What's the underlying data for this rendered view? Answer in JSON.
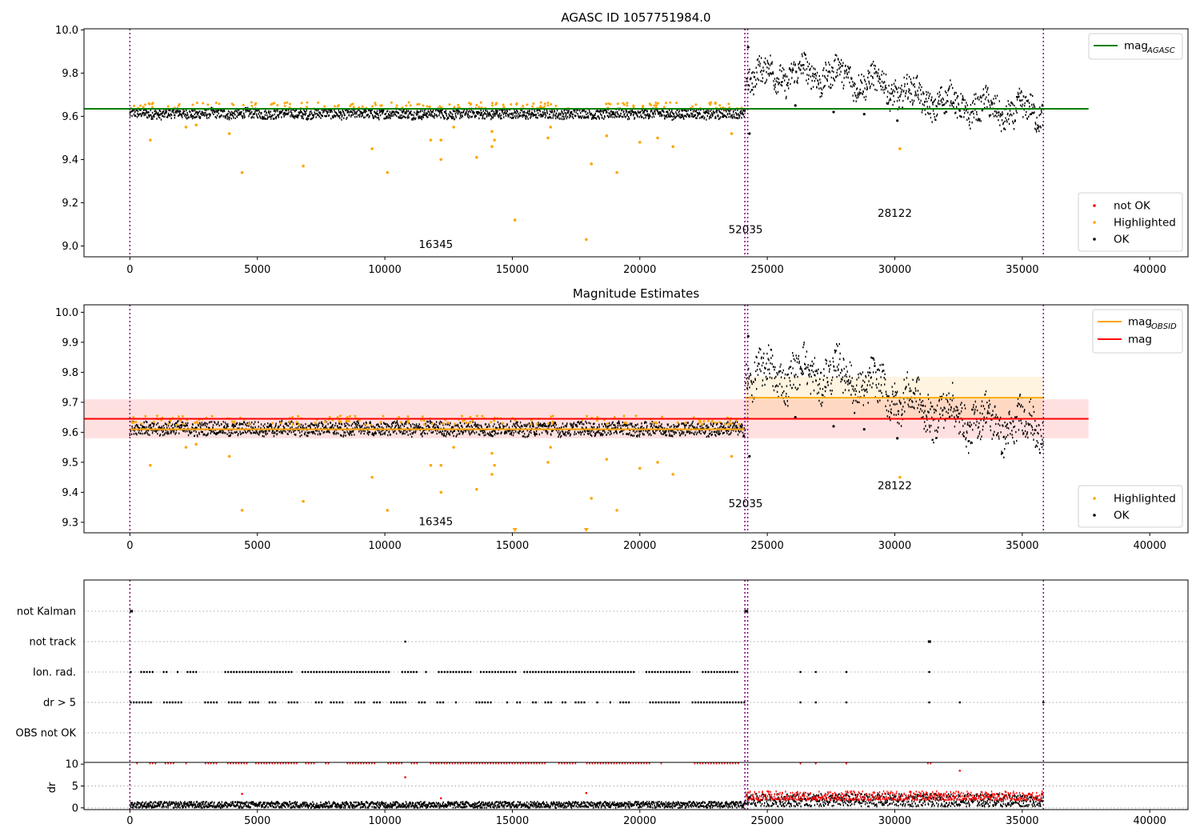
{
  "chart_data": [
    {
      "type": "scatter",
      "title": "AGASC ID 1057751984.0",
      "xlim": [
        -1800,
        41500
      ],
      "ylim": [
        8.95,
        10.005
      ],
      "x_ticks": [
        0,
        5000,
        10000,
        15000,
        20000,
        25000,
        30000,
        35000,
        40000
      ],
      "y_ticks": [
        9.0,
        9.2,
        9.4,
        9.6,
        9.8,
        10.0
      ],
      "y_tick_labels": [
        "9.0",
        "9.2",
        "9.4",
        "9.6",
        "9.8",
        "10.0"
      ],
      "legend_top": {
        "entries": [
          {
            "label": "mag",
            "sub": "AGASC",
            "color": "#008000"
          }
        ]
      },
      "legend_bottom": {
        "entries": [
          {
            "label": "not OK",
            "color": "#ff0000"
          },
          {
            "label": "Highlighted",
            "color": "#ffa500"
          },
          {
            "label": "OK",
            "color": "#000000"
          }
        ]
      },
      "lines": [
        {
          "name": "mag_AGASC",
          "y": 9.635,
          "x0": -1800,
          "x1": 37600,
          "color": "#008000"
        }
      ],
      "vlines": [
        0,
        24120,
        24230,
        35830
      ],
      "bands": [
        {
          "x0": 0,
          "x1": 24150,
          "center": 9.612,
          "spread": 0.022,
          "slope": -0.0009,
          "amp": 0.004
        },
        {
          "x0": 24150,
          "x1": 35830,
          "center_points": [
            [
              24150,
              9.79
            ],
            [
              27600,
              9.795
            ],
            [
              29500,
              9.74
            ],
            [
              31500,
              9.67
            ],
            [
              34000,
              9.625
            ],
            [
              35830,
              9.62
            ]
          ],
          "spread": 0.06,
          "amp": 0.035
        }
      ],
      "highlighted": [
        [
          800,
          9.49
        ],
        [
          2200,
          9.55
        ],
        [
          2600,
          9.56
        ],
        [
          3900,
          9.52
        ],
        [
          4400,
          9.34
        ],
        [
          6800,
          9.37
        ],
        [
          9500,
          9.45
        ],
        [
          10100,
          9.34
        ],
        [
          11800,
          9.49
        ],
        [
          12200,
          9.49
        ],
        [
          12200,
          9.4
        ],
        [
          12700,
          9.55
        ],
        [
          13600,
          9.41
        ],
        [
          14200,
          9.53
        ],
        [
          14300,
          9.49
        ],
        [
          14200,
          9.46
        ],
        [
          15100,
          9.12
        ],
        [
          16400,
          9.5
        ],
        [
          16500,
          9.55
        ],
        [
          17900,
          9.03
        ],
        [
          18100,
          9.38
        ],
        [
          18700,
          9.51
        ],
        [
          19100,
          9.34
        ],
        [
          20000,
          9.48
        ],
        [
          20700,
          9.5
        ],
        [
          21300,
          9.46
        ],
        [
          23600,
          9.52
        ],
        [
          30200,
          9.45
        ]
      ],
      "ok_outliers": [
        [
          24250,
          9.92
        ],
        [
          24300,
          9.52
        ],
        [
          26100,
          9.65
        ],
        [
          27600,
          9.62
        ],
        [
          28800,
          9.61
        ],
        [
          30100,
          9.58
        ]
      ],
      "annotations": [
        {
          "text": "16345",
          "x": 12000,
          "y": 8.99
        },
        {
          "text": "52035",
          "x": 24150,
          "y": 9.06
        },
        {
          "text": "28122",
          "x": 30000,
          "y": 9.135
        }
      ]
    },
    {
      "type": "scatter",
      "title": "Magnitude Estimates",
      "xlim": [
        -1800,
        41500
      ],
      "ylim": [
        9.265,
        10.025
      ],
      "x_ticks": [
        0,
        5000,
        10000,
        15000,
        20000,
        25000,
        30000,
        35000,
        40000
      ],
      "y_ticks": [
        9.3,
        9.4,
        9.5,
        9.6,
        9.7,
        9.8,
        9.9,
        10.0
      ],
      "y_tick_labels": [
        "9.3",
        "9.4",
        "9.5",
        "9.6",
        "9.7",
        "9.8",
        "9.9",
        "10.0"
      ],
      "legend_top": {
        "entries": [
          {
            "label": "mag",
            "sub": "OBSID",
            "color": "#ffa500"
          },
          {
            "label": "mag",
            "sub": "",
            "color": "#ff0000"
          }
        ]
      },
      "legend_bottom": {
        "entries": [
          {
            "label": "Highlighted",
            "color": "#ffa500"
          },
          {
            "label": "OK",
            "color": "#000000"
          }
        ]
      },
      "lines": [
        {
          "name": "mag",
          "y": 9.645,
          "x0": -1800,
          "x1": 37600,
          "color": "#ff0000"
        },
        {
          "name": "mag_OBSID_1",
          "y": 9.61,
          "x0": 0,
          "x1": 24150,
          "color": "#ffa500"
        },
        {
          "name": "mag_OBSID_2",
          "y": 9.715,
          "x0": 24150,
          "x1": 35830,
          "color": "#ffa500"
        }
      ],
      "shades": [
        {
          "x0": -1800,
          "x1": 37600,
          "y0": 9.58,
          "y1": 9.71,
          "color": "#ff0000",
          "opacity": 0.12
        },
        {
          "x0": 24150,
          "x1": 35830,
          "y0": 9.645,
          "y1": 9.785,
          "color": "#ffa500",
          "opacity": 0.12
        }
      ],
      "vlines": [
        0,
        24120,
        24230,
        35830
      ],
      "bands": [
        {
          "x0": 0,
          "x1": 24150,
          "center": 9.612,
          "spread": 0.022,
          "slope": -0.0009,
          "amp": 0.004
        },
        {
          "x0": 24150,
          "x1": 35830,
          "center_points": [
            [
              24150,
              9.79
            ],
            [
              27600,
              9.795
            ],
            [
              29500,
              9.74
            ],
            [
              31500,
              9.67
            ],
            [
              34000,
              9.625
            ],
            [
              35830,
              9.62
            ]
          ],
          "spread": 0.06,
          "amp": 0.035
        }
      ],
      "highlighted": [
        [
          800,
          9.49
        ],
        [
          2200,
          9.55
        ],
        [
          2600,
          9.56
        ],
        [
          3900,
          9.52
        ],
        [
          4400,
          9.34
        ],
        [
          6800,
          9.37
        ],
        [
          9500,
          9.45
        ],
        [
          10100,
          9.34
        ],
        [
          11800,
          9.49
        ],
        [
          12200,
          9.49
        ],
        [
          12200,
          9.4
        ],
        [
          12700,
          9.55
        ],
        [
          13600,
          9.41
        ],
        [
          14200,
          9.53
        ],
        [
          14300,
          9.49
        ],
        [
          14200,
          9.46
        ],
        [
          16400,
          9.5
        ],
        [
          16500,
          9.55
        ],
        [
          18100,
          9.38
        ],
        [
          18700,
          9.51
        ],
        [
          19100,
          9.34
        ],
        [
          20000,
          9.48
        ],
        [
          20700,
          9.5
        ],
        [
          21300,
          9.46
        ],
        [
          23600,
          9.52
        ],
        [
          30200,
          9.45
        ]
      ],
      "highlighted_clipped": [
        15100,
        17900
      ],
      "ok_outliers": [
        [
          24250,
          9.92
        ],
        [
          24300,
          9.52
        ],
        [
          26100,
          9.65
        ],
        [
          27600,
          9.62
        ],
        [
          28800,
          9.61
        ],
        [
          30100,
          9.58
        ]
      ],
      "annotations": [
        {
          "text": "16345",
          "x": 12000,
          "y": 9.29
        },
        {
          "text": "52035",
          "x": 24150,
          "y": 9.35
        },
        {
          "text": "28122",
          "x": 30000,
          "y": 9.41
        }
      ]
    },
    {
      "type": "scatter",
      "xlim": [
        -1800,
        41500
      ],
      "x_ticks": [
        0,
        5000,
        10000,
        15000,
        20000,
        25000,
        30000,
        35000,
        40000
      ],
      "flag_rows": [
        "not Kalman",
        "not track",
        "Ion. rad.",
        "dr > 5",
        "OBS not OK"
      ],
      "flag_points": {
        "not Kalman": [
          [
            0,
            120
          ],
          [
            24100,
            24250
          ]
        ],
        "not track": [
          [
            10800,
            10820
          ],
          [
            31300,
            31420
          ]
        ],
        "Ion. rad.": [
          [
            0,
            24150
          ],
          [
            26300,
            26320
          ],
          [
            26900,
            26920
          ],
          [
            28100,
            28120
          ],
          [
            31350,
            31370
          ]
        ],
        "dr > 5": [
          [
            0,
            24150
          ],
          [
            26300,
            26320
          ],
          [
            26900,
            26920
          ],
          [
            28100,
            28120
          ],
          [
            31350,
            31370
          ],
          [
            32550,
            32570
          ],
          [
            35830,
            35840
          ]
        ],
        "OBS not OK": []
      },
      "dr": {
        "ylabel": "dr",
        "ylim": [
          -0.4,
          10.4
        ],
        "y_ticks": [
          0,
          5,
          10
        ],
        "y_tick_labels": [
          "0",
          "5",
          "10"
        ],
        "ok_bands": [
          {
            "x0": 0,
            "x1": 24150,
            "lo": 0,
            "hi": 1.4
          },
          {
            "x0": 24150,
            "x1": 35830,
            "lo": 0.3,
            "hi": 3.2
          }
        ],
        "not_ok_band": {
          "x0": 24150,
          "x1": 35830,
          "lo": 1.8,
          "hi": 3.8
        },
        "clipped_x_ranges": [
          [
            0,
            24150
          ],
          [
            31300,
            31420
          ]
        ],
        "clipped_isolated": [
          26300,
          26900,
          28100
        ],
        "not_ok_points": [
          [
            4400,
            3.2
          ],
          [
            10800,
            7.0
          ],
          [
            12200,
            2.2
          ],
          [
            17900,
            3.4
          ],
          [
            32550,
            8.5
          ]
        ]
      },
      "vlines": [
        0,
        24120,
        24230,
        35830
      ]
    }
  ]
}
